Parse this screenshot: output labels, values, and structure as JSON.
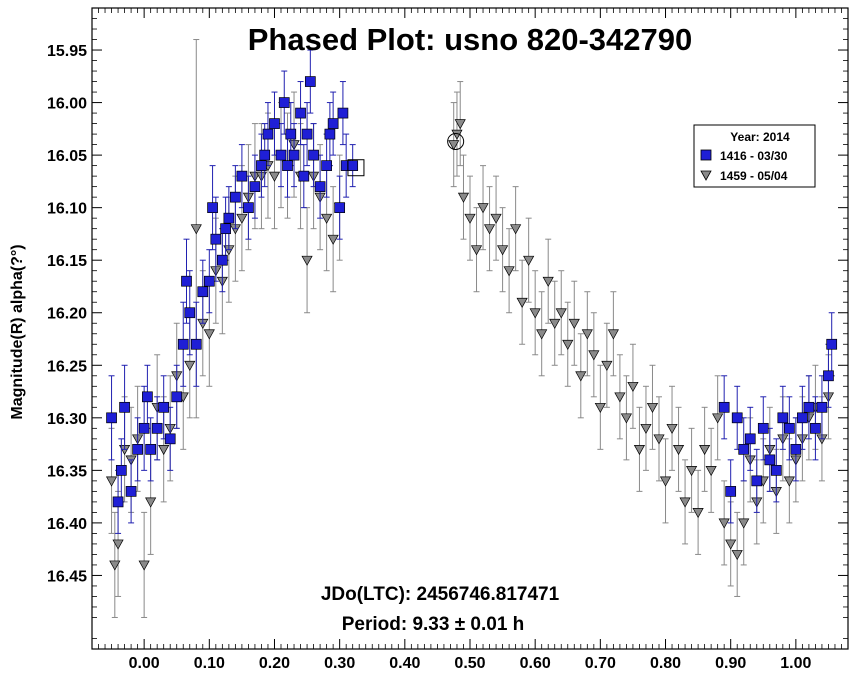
{
  "chart_data": {
    "type": "scatter",
    "title": "Phased Plot: usno 820-342790",
    "xlabel": "",
    "ylabel": "Magnitude(R) alpha(?°)",
    "xlim": [
      -0.08,
      1.08
    ],
    "ylim": [
      15.91,
      16.52
    ],
    "y_inverted": true,
    "x_ticks": [
      "0.00",
      "0.10",
      "0.20",
      "0.30",
      "0.40",
      "0.50",
      "0.60",
      "0.70",
      "0.80",
      "0.90",
      "1.00"
    ],
    "y_ticks": [
      "15.95",
      "16.00",
      "16.05",
      "16.10",
      "16.15",
      "16.20",
      "16.25",
      "16.30",
      "16.35",
      "16.40",
      "16.45"
    ],
    "annotations": [
      "JDo(LTC): 2456746.817471",
      "Period: 9.33 ± 0.01 h"
    ],
    "legend": {
      "position": "top-right",
      "title": "Year: 2014",
      "entries": [
        "1416 - 03/30",
        "1459 - 05/04"
      ]
    },
    "colors": {
      "series1": "#1f1fd6",
      "series2": "#8a8a8a",
      "errbar1": "#2020b0",
      "errbar2": "#8a8a8a"
    },
    "series": [
      {
        "name": "1416 - 03/30",
        "marker": "square",
        "points": [
          [
            -0.05,
            16.3,
            0.04
          ],
          [
            -0.04,
            16.38,
            0.03
          ],
          [
            -0.035,
            16.35,
            0.03
          ],
          [
            -0.03,
            16.29,
            0.04
          ],
          [
            -0.02,
            16.37,
            0.03
          ],
          [
            -0.01,
            16.33,
            0.03
          ],
          [
            0.0,
            16.31,
            0.04
          ],
          [
            0.005,
            16.28,
            0.03
          ],
          [
            0.01,
            16.33,
            0.03
          ],
          [
            0.02,
            16.31,
            0.03
          ],
          [
            0.03,
            16.29,
            0.03
          ],
          [
            0.04,
            16.32,
            0.03
          ],
          [
            0.05,
            16.28,
            0.03
          ],
          [
            0.06,
            16.23,
            0.04
          ],
          [
            0.065,
            16.17,
            0.04
          ],
          [
            0.07,
            16.2,
            0.04
          ],
          [
            0.08,
            16.23,
            0.04
          ],
          [
            0.09,
            16.18,
            0.03
          ],
          [
            0.1,
            16.17,
            0.03
          ],
          [
            0.105,
            16.1,
            0.04
          ],
          [
            0.11,
            16.13,
            0.04
          ],
          [
            0.12,
            16.15,
            0.03
          ],
          [
            0.125,
            16.12,
            0.03
          ],
          [
            0.13,
            16.11,
            0.03
          ],
          [
            0.14,
            16.09,
            0.03
          ],
          [
            0.15,
            16.07,
            0.03
          ],
          [
            0.16,
            16.1,
            0.03
          ],
          [
            0.17,
            16.08,
            0.03
          ],
          [
            0.18,
            16.06,
            0.03
          ],
          [
            0.185,
            16.05,
            0.03
          ],
          [
            0.19,
            16.03,
            0.03
          ],
          [
            0.2,
            16.02,
            0.03
          ],
          [
            0.21,
            16.05,
            0.03
          ],
          [
            0.215,
            16.0,
            0.03
          ],
          [
            0.22,
            16.06,
            0.03
          ],
          [
            0.225,
            16.03,
            0.03
          ],
          [
            0.23,
            16.05,
            0.03
          ],
          [
            0.24,
            16.01,
            0.03
          ],
          [
            0.245,
            16.07,
            0.03
          ],
          [
            0.25,
            16.03,
            0.03
          ],
          [
            0.255,
            15.98,
            0.03
          ],
          [
            0.26,
            16.05,
            0.03
          ],
          [
            0.27,
            16.08,
            0.03
          ],
          [
            0.28,
            16.06,
            0.03
          ],
          [
            0.285,
            16.03,
            0.03
          ],
          [
            0.29,
            16.02,
            0.03
          ],
          [
            0.3,
            16.1,
            0.03
          ],
          [
            0.305,
            16.01,
            0.03
          ],
          [
            0.31,
            16.06,
            0.03
          ],
          [
            0.32,
            16.06,
            0.02
          ],
          [
            0.89,
            16.29,
            0.03
          ],
          [
            0.9,
            16.37,
            0.03
          ],
          [
            0.91,
            16.3,
            0.03
          ],
          [
            0.92,
            16.33,
            0.03
          ],
          [
            0.93,
            16.32,
            0.03
          ],
          [
            0.94,
            16.36,
            0.03
          ],
          [
            0.95,
            16.31,
            0.03
          ],
          [
            0.96,
            16.34,
            0.03
          ],
          [
            0.97,
            16.35,
            0.03
          ],
          [
            0.98,
            16.3,
            0.03
          ],
          [
            0.99,
            16.31,
            0.03
          ],
          [
            1.0,
            16.33,
            0.03
          ],
          [
            1.01,
            16.3,
            0.03
          ],
          [
            1.02,
            16.29,
            0.03
          ],
          [
            1.03,
            16.31,
            0.03
          ],
          [
            1.04,
            16.29,
            0.03
          ],
          [
            1.05,
            16.26,
            0.03
          ],
          [
            1.055,
            16.23,
            0.03
          ]
        ]
      },
      {
        "name": "1459 - 05/04",
        "marker": "triangle-down",
        "points": [
          [
            -0.05,
            16.36,
            0.05
          ],
          [
            -0.045,
            16.44,
            0.05
          ],
          [
            -0.04,
            16.42,
            0.05
          ],
          [
            -0.03,
            16.33,
            0.05
          ],
          [
            -0.02,
            16.34,
            0.05
          ],
          [
            -0.01,
            16.32,
            0.05
          ],
          [
            0.0,
            16.44,
            0.05
          ],
          [
            0.01,
            16.38,
            0.05
          ],
          [
            0.02,
            16.29,
            0.05
          ],
          [
            0.03,
            16.33,
            0.05
          ],
          [
            0.04,
            16.31,
            0.05
          ],
          [
            0.05,
            16.26,
            0.05
          ],
          [
            0.06,
            16.28,
            0.05
          ],
          [
            0.07,
            16.25,
            0.05
          ],
          [
            0.08,
            16.12,
            0.18
          ],
          [
            0.09,
            16.21,
            0.05
          ],
          [
            0.1,
            16.22,
            0.05
          ],
          [
            0.11,
            16.16,
            0.05
          ],
          [
            0.12,
            16.17,
            0.05
          ],
          [
            0.13,
            16.14,
            0.05
          ],
          [
            0.14,
            16.12,
            0.05
          ],
          [
            0.15,
            16.11,
            0.05
          ],
          [
            0.16,
            16.09,
            0.05
          ],
          [
            0.17,
            16.07,
            0.05
          ],
          [
            0.18,
            16.07,
            0.05
          ],
          [
            0.19,
            16.06,
            0.05
          ],
          [
            0.2,
            16.07,
            0.05
          ],
          [
            0.21,
            16.05,
            0.05
          ],
          [
            0.22,
            16.06,
            0.05
          ],
          [
            0.23,
            16.04,
            0.05
          ],
          [
            0.24,
            16.07,
            0.05
          ],
          [
            0.25,
            16.15,
            0.05
          ],
          [
            0.26,
            16.07,
            0.05
          ],
          [
            0.27,
            16.09,
            0.05
          ],
          [
            0.28,
            16.11,
            0.05
          ],
          [
            0.29,
            16.13,
            0.05
          ],
          [
            0.3,
            16.1,
            0.05
          ],
          [
            0.475,
            16.04,
            0.04
          ],
          [
            0.48,
            16.03,
            0.04
          ],
          [
            0.485,
            16.02,
            0.04
          ],
          [
            0.49,
            16.09,
            0.04
          ],
          [
            0.5,
            16.11,
            0.04
          ],
          [
            0.51,
            16.14,
            0.04
          ],
          [
            0.52,
            16.1,
            0.04
          ],
          [
            0.53,
            16.12,
            0.04
          ],
          [
            0.54,
            16.11,
            0.04
          ],
          [
            0.55,
            16.14,
            0.04
          ],
          [
            0.56,
            16.16,
            0.04
          ],
          [
            0.57,
            16.12,
            0.04
          ],
          [
            0.58,
            16.19,
            0.04
          ],
          [
            0.59,
            16.15,
            0.04
          ],
          [
            0.6,
            16.2,
            0.04
          ],
          [
            0.61,
            16.22,
            0.04
          ],
          [
            0.62,
            16.17,
            0.04
          ],
          [
            0.63,
            16.21,
            0.04
          ],
          [
            0.64,
            16.2,
            0.04
          ],
          [
            0.65,
            16.23,
            0.04
          ],
          [
            0.66,
            16.21,
            0.04
          ],
          [
            0.67,
            16.26,
            0.04
          ],
          [
            0.68,
            16.22,
            0.04
          ],
          [
            0.69,
            16.24,
            0.04
          ],
          [
            0.7,
            16.29,
            0.04
          ],
          [
            0.71,
            16.25,
            0.04
          ],
          [
            0.72,
            16.22,
            0.04
          ],
          [
            0.73,
            16.28,
            0.04
          ],
          [
            0.74,
            16.3,
            0.04
          ],
          [
            0.75,
            16.27,
            0.04
          ],
          [
            0.76,
            16.33,
            0.04
          ],
          [
            0.77,
            16.31,
            0.04
          ],
          [
            0.78,
            16.29,
            0.04
          ],
          [
            0.79,
            16.32,
            0.04
          ],
          [
            0.8,
            16.36,
            0.04
          ],
          [
            0.81,
            16.31,
            0.04
          ],
          [
            0.82,
            16.33,
            0.04
          ],
          [
            0.83,
            16.38,
            0.04
          ],
          [
            0.84,
            16.35,
            0.04
          ],
          [
            0.85,
            16.39,
            0.04
          ],
          [
            0.86,
            16.33,
            0.04
          ],
          [
            0.87,
            16.35,
            0.04
          ],
          [
            0.88,
            16.3,
            0.04
          ],
          [
            0.89,
            16.4,
            0.04
          ],
          [
            0.9,
            16.42,
            0.04
          ],
          [
            0.91,
            16.43,
            0.04
          ],
          [
            0.92,
            16.4,
            0.04
          ],
          [
            0.93,
            16.34,
            0.04
          ],
          [
            0.94,
            16.38,
            0.04
          ],
          [
            0.95,
            16.36,
            0.04
          ],
          [
            0.96,
            16.33,
            0.04
          ],
          [
            0.97,
            16.37,
            0.04
          ],
          [
            0.98,
            16.32,
            0.04
          ],
          [
            0.99,
            16.36,
            0.04
          ],
          [
            1.0,
            16.34,
            0.04
          ],
          [
            1.01,
            16.32,
            0.04
          ],
          [
            1.02,
            16.3,
            0.04
          ],
          [
            1.03,
            16.29,
            0.04
          ],
          [
            1.04,
            16.32,
            0.04
          ],
          [
            1.05,
            16.28,
            0.04
          ]
        ]
      }
    ]
  }
}
